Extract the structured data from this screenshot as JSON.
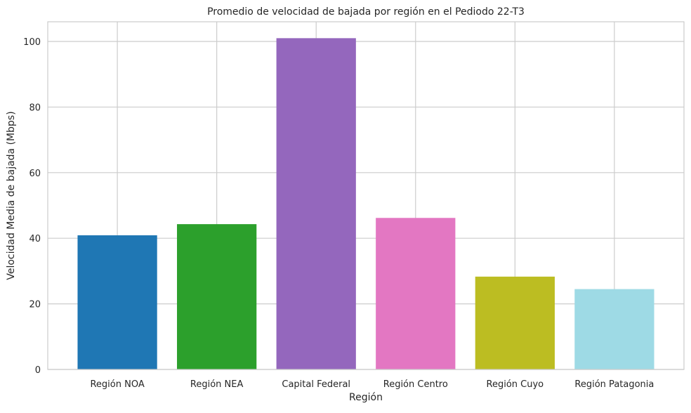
{
  "chart_data": {
    "type": "bar",
    "title": "Promedio de velocidad de bajada por región en el Pediodo 22-T3",
    "xlabel": "Región",
    "ylabel": "Velocidad Media de bajada (Mbps)",
    "categories": [
      "Región NOA",
      "Región NEA",
      "Capital Federal",
      "Región Centro",
      "Región Cuyo",
      "Región Patagonia"
    ],
    "values": [
      40.9,
      44.3,
      101.0,
      46.2,
      28.3,
      24.5
    ],
    "colors": [
      "#1f77b4",
      "#2ca02c",
      "#9467bd",
      "#e377c2",
      "#bcbd22",
      "#9edae5"
    ],
    "ylim": [
      0,
      106
    ],
    "yticks": [
      0,
      20,
      40,
      60,
      80,
      100
    ],
    "grid": true,
    "legend": "none"
  }
}
